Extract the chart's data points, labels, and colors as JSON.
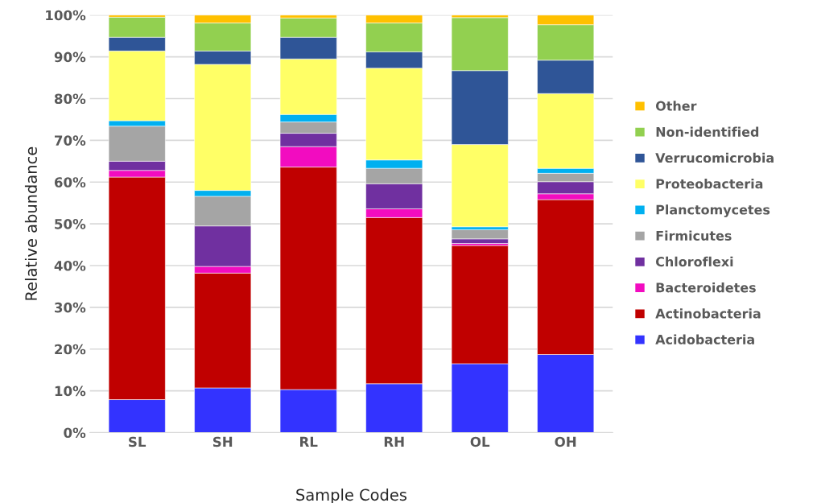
{
  "chart_data": {
    "type": "bar",
    "stacked": true,
    "xlabel": "Sample Codes",
    "ylabel": "Relative abundance",
    "categories": [
      "SL",
      "SH",
      "RL",
      "RH",
      "OL",
      "OH"
    ],
    "series": [
      {
        "name": "Acidobacteria",
        "color": "#3333ff",
        "values": [
          7.9,
          10.7,
          10.3,
          11.7,
          16.5,
          18.7
        ]
      },
      {
        "name": "Actinobacteria",
        "color": "#c00000",
        "values": [
          53.3,
          27.5,
          53.3,
          39.8,
          28.3,
          37.1
        ]
      },
      {
        "name": "Bacteroidetes",
        "color": "#f20cc0",
        "values": [
          1.6,
          1.6,
          4.9,
          2.1,
          0.5,
          1.4
        ]
      },
      {
        "name": "Chloroflexi",
        "color": "#7030a0",
        "values": [
          2.2,
          9.7,
          3.2,
          6.0,
          1.1,
          2.9
        ]
      },
      {
        "name": "Firmicutes",
        "color": "#a5a5a5",
        "values": [
          8.4,
          7.1,
          2.7,
          3.7,
          2.2,
          2.0
        ]
      },
      {
        "name": "Planctomycetes",
        "color": "#00b0f0",
        "values": [
          1.3,
          1.4,
          1.8,
          2.0,
          0.7,
          1.2
        ]
      },
      {
        "name": "Proteobacteria",
        "color": "#ffff66",
        "values": [
          16.7,
          30.2,
          13.3,
          22.0,
          19.7,
          17.9
        ]
      },
      {
        "name": "Verrucomicrobia",
        "color": "#2f5597",
        "values": [
          3.3,
          3.2,
          5.2,
          3.9,
          17.7,
          8.0
        ]
      },
      {
        "name": "Non-identified",
        "color": "#92d050",
        "values": [
          4.8,
          6.7,
          4.6,
          6.9,
          12.7,
          8.5
        ]
      },
      {
        "name": "Other",
        "color": "#ffc000",
        "values": [
          0.5,
          1.9,
          0.7,
          1.9,
          0.6,
          2.3
        ]
      }
    ],
    "ylim": [
      0,
      100
    ],
    "yticks": [
      {
        "value": 0,
        "label": "0%"
      },
      {
        "value": 10,
        "label": "10%"
      },
      {
        "value": 20,
        "label": "20%"
      },
      {
        "value": 30,
        "label": "30%"
      },
      {
        "value": 40,
        "label": "40%"
      },
      {
        "value": 50,
        "label": "50%"
      },
      {
        "value": 60,
        "label": "60%"
      },
      {
        "value": 70,
        "label": "70%"
      },
      {
        "value": 80,
        "label": "80%"
      },
      {
        "value": 90,
        "label": "90%"
      },
      {
        "value": 100,
        "label": "100%"
      }
    ],
    "grid": "y",
    "legend": "right"
  }
}
